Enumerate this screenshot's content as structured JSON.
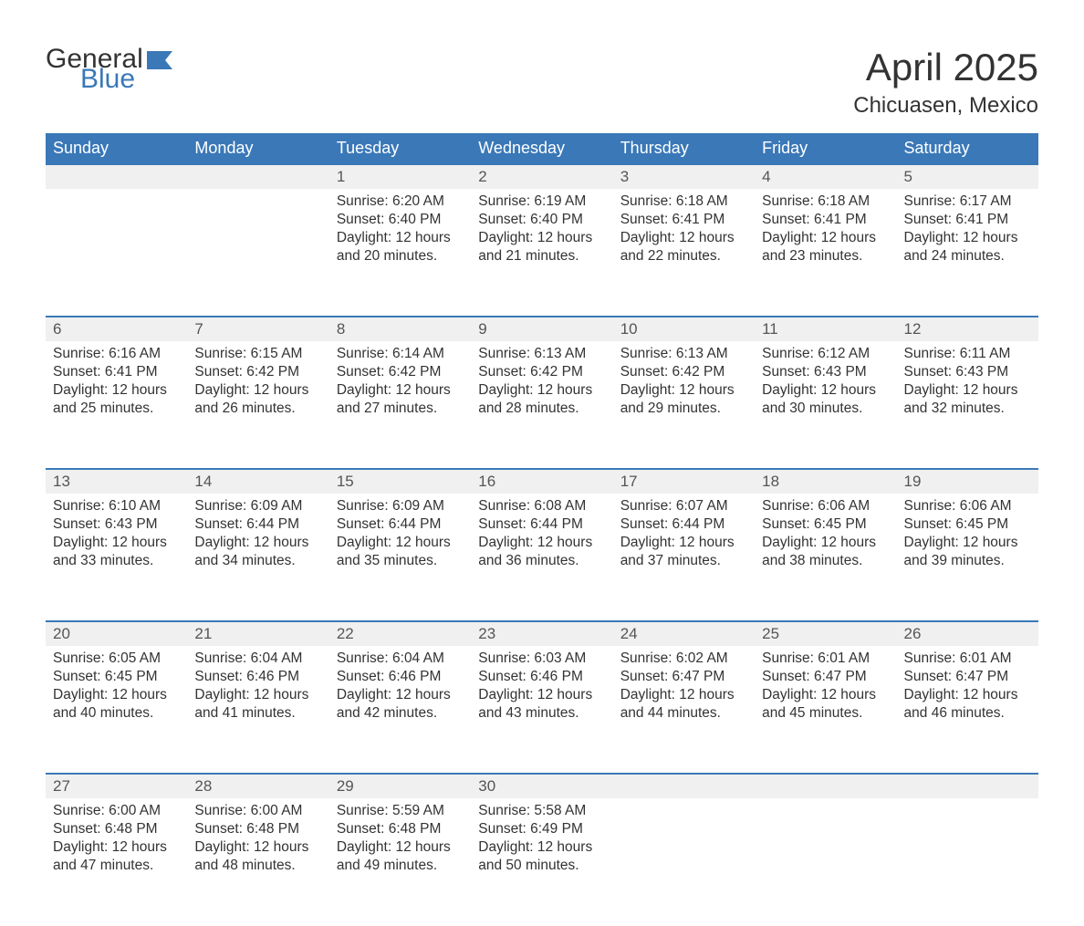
{
  "logo": {
    "word1": "General",
    "word2": "Blue",
    "word1_color": "#333333",
    "word2_color": "#3a78b8",
    "flag_color": "#3a78b8"
  },
  "header": {
    "month_title": "April 2025",
    "location": "Chicuasen, Mexico"
  },
  "colors": {
    "header_bg": "#3a78b8",
    "header_text": "#ffffff",
    "daynum_bg": "#f0f0f0",
    "row_border": "#3a78b8",
    "body_text": "#333333",
    "background": "#ffffff"
  },
  "typography": {
    "title_fontsize": 42,
    "location_fontsize": 24,
    "th_fontsize": 18,
    "daynum_fontsize": 17,
    "body_fontsize": 15.5
  },
  "weekdays": [
    "Sunday",
    "Monday",
    "Tuesday",
    "Wednesday",
    "Thursday",
    "Friday",
    "Saturday"
  ],
  "labels": {
    "sunrise_prefix": "Sunrise: ",
    "sunset_prefix": "Sunset: ",
    "daylight_prefix": "Daylight: ",
    "daylight_mid": " hours and ",
    "daylight_suffix": " minutes."
  },
  "weeks": [
    [
      null,
      null,
      {
        "day": 1,
        "sunrise": "6:20 AM",
        "sunset": "6:40 PM",
        "dl_h": 12,
        "dl_m": 20
      },
      {
        "day": 2,
        "sunrise": "6:19 AM",
        "sunset": "6:40 PM",
        "dl_h": 12,
        "dl_m": 21
      },
      {
        "day": 3,
        "sunrise": "6:18 AM",
        "sunset": "6:41 PM",
        "dl_h": 12,
        "dl_m": 22
      },
      {
        "day": 4,
        "sunrise": "6:18 AM",
        "sunset": "6:41 PM",
        "dl_h": 12,
        "dl_m": 23
      },
      {
        "day": 5,
        "sunrise": "6:17 AM",
        "sunset": "6:41 PM",
        "dl_h": 12,
        "dl_m": 24
      }
    ],
    [
      {
        "day": 6,
        "sunrise": "6:16 AM",
        "sunset": "6:41 PM",
        "dl_h": 12,
        "dl_m": 25
      },
      {
        "day": 7,
        "sunrise": "6:15 AM",
        "sunset": "6:42 PM",
        "dl_h": 12,
        "dl_m": 26
      },
      {
        "day": 8,
        "sunrise": "6:14 AM",
        "sunset": "6:42 PM",
        "dl_h": 12,
        "dl_m": 27
      },
      {
        "day": 9,
        "sunrise": "6:13 AM",
        "sunset": "6:42 PM",
        "dl_h": 12,
        "dl_m": 28
      },
      {
        "day": 10,
        "sunrise": "6:13 AM",
        "sunset": "6:42 PM",
        "dl_h": 12,
        "dl_m": 29
      },
      {
        "day": 11,
        "sunrise": "6:12 AM",
        "sunset": "6:43 PM",
        "dl_h": 12,
        "dl_m": 30
      },
      {
        "day": 12,
        "sunrise": "6:11 AM",
        "sunset": "6:43 PM",
        "dl_h": 12,
        "dl_m": 32
      }
    ],
    [
      {
        "day": 13,
        "sunrise": "6:10 AM",
        "sunset": "6:43 PM",
        "dl_h": 12,
        "dl_m": 33
      },
      {
        "day": 14,
        "sunrise": "6:09 AM",
        "sunset": "6:44 PM",
        "dl_h": 12,
        "dl_m": 34
      },
      {
        "day": 15,
        "sunrise": "6:09 AM",
        "sunset": "6:44 PM",
        "dl_h": 12,
        "dl_m": 35
      },
      {
        "day": 16,
        "sunrise": "6:08 AM",
        "sunset": "6:44 PM",
        "dl_h": 12,
        "dl_m": 36
      },
      {
        "day": 17,
        "sunrise": "6:07 AM",
        "sunset": "6:44 PM",
        "dl_h": 12,
        "dl_m": 37
      },
      {
        "day": 18,
        "sunrise": "6:06 AM",
        "sunset": "6:45 PM",
        "dl_h": 12,
        "dl_m": 38
      },
      {
        "day": 19,
        "sunrise": "6:06 AM",
        "sunset": "6:45 PM",
        "dl_h": 12,
        "dl_m": 39
      }
    ],
    [
      {
        "day": 20,
        "sunrise": "6:05 AM",
        "sunset": "6:45 PM",
        "dl_h": 12,
        "dl_m": 40
      },
      {
        "day": 21,
        "sunrise": "6:04 AM",
        "sunset": "6:46 PM",
        "dl_h": 12,
        "dl_m": 41
      },
      {
        "day": 22,
        "sunrise": "6:04 AM",
        "sunset": "6:46 PM",
        "dl_h": 12,
        "dl_m": 42
      },
      {
        "day": 23,
        "sunrise": "6:03 AM",
        "sunset": "6:46 PM",
        "dl_h": 12,
        "dl_m": 43
      },
      {
        "day": 24,
        "sunrise": "6:02 AM",
        "sunset": "6:47 PM",
        "dl_h": 12,
        "dl_m": 44
      },
      {
        "day": 25,
        "sunrise": "6:01 AM",
        "sunset": "6:47 PM",
        "dl_h": 12,
        "dl_m": 45
      },
      {
        "day": 26,
        "sunrise": "6:01 AM",
        "sunset": "6:47 PM",
        "dl_h": 12,
        "dl_m": 46
      }
    ],
    [
      {
        "day": 27,
        "sunrise": "6:00 AM",
        "sunset": "6:48 PM",
        "dl_h": 12,
        "dl_m": 47
      },
      {
        "day": 28,
        "sunrise": "6:00 AM",
        "sunset": "6:48 PM",
        "dl_h": 12,
        "dl_m": 48
      },
      {
        "day": 29,
        "sunrise": "5:59 AM",
        "sunset": "6:48 PM",
        "dl_h": 12,
        "dl_m": 49
      },
      {
        "day": 30,
        "sunrise": "5:58 AM",
        "sunset": "6:49 PM",
        "dl_h": 12,
        "dl_m": 50
      },
      null,
      null,
      null
    ]
  ]
}
